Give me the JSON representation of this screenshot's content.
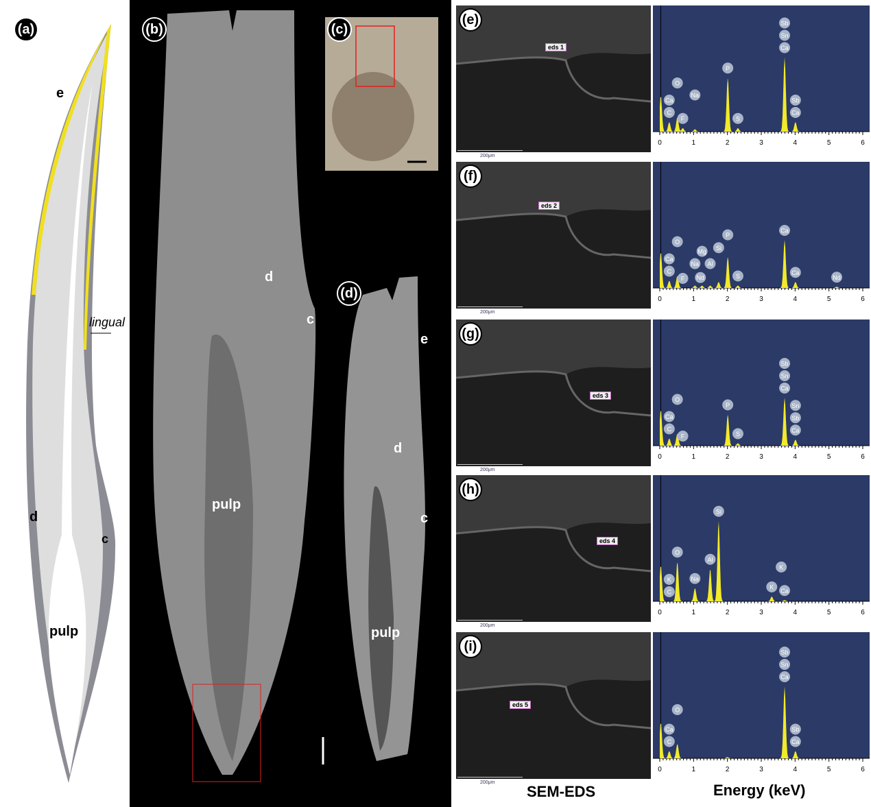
{
  "panel_a": {
    "label": "(a)",
    "enamel": "e",
    "dentine": "d",
    "cementum": "c",
    "pulp": "pulp",
    "lingual": "lingual"
  },
  "panel_b": {
    "label": "(b)",
    "dentine": "d",
    "cementum": "c",
    "pulp": "pulp"
  },
  "panel_c": {
    "label": "(c)"
  },
  "panel_d": {
    "label": "(d)",
    "enamel": "e",
    "dentine": "d",
    "cementum": "c",
    "pulp": "pulp"
  },
  "colors": {
    "enamel": "#f0e020",
    "spectrum_bg": "#2b3a67",
    "peak": "#f2ea2a",
    "highlight_box": "#e02020"
  },
  "sem_scale": "200μm",
  "captions": {
    "sem": "SEM-EDS",
    "energy": "Energy (keV)"
  },
  "chart_data": [
    {
      "type": "area",
      "panel": "(e)",
      "spot": "eds 1",
      "xlabel": "Energy (keV)",
      "xlim": [
        0,
        6
      ],
      "xticks": [
        "0",
        "1",
        "2",
        "3",
        "4",
        "5",
        "6"
      ],
      "peaks": [
        [
          0.03,
          0.3
        ],
        [
          0.28,
          0.08
        ],
        [
          0.52,
          0.12
        ],
        [
          0.68,
          0.03
        ],
        [
          1.04,
          0.02
        ],
        [
          2.01,
          0.45
        ],
        [
          2.31,
          0.03
        ],
        [
          3.69,
          0.62
        ],
        [
          4.01,
          0.08
        ]
      ],
      "labels": [
        [
          "C",
          0.28
        ],
        [
          "Ca",
          0.28
        ],
        [
          "O",
          0.52
        ],
        [
          "F",
          0.68
        ],
        [
          "Na",
          1.04
        ],
        [
          "P",
          2.01
        ],
        [
          "S",
          2.31
        ],
        [
          "Ca",
          3.69
        ],
        [
          "Sn",
          3.69
        ],
        [
          "Sb",
          3.69
        ],
        [
          "Ca",
          4.01
        ],
        [
          "Sb",
          4.01
        ]
      ]
    },
    {
      "type": "area",
      "panel": "(f)",
      "spot": "eds 2",
      "xlabel": "Energy (keV)",
      "xlim": [
        0,
        6
      ],
      "xticks": [
        "0",
        "1",
        "2",
        "3",
        "4",
        "5",
        "6"
      ],
      "peaks": [
        [
          0.03,
          0.3
        ],
        [
          0.28,
          0.06
        ],
        [
          0.52,
          0.1
        ],
        [
          1.04,
          0.02
        ],
        [
          1.25,
          0.02
        ],
        [
          1.49,
          0.02
        ],
        [
          1.74,
          0.05
        ],
        [
          2.01,
          0.26
        ],
        [
          2.31,
          0.02
        ],
        [
          3.69,
          0.4
        ],
        [
          4.01,
          0.05
        ],
        [
          5.23,
          0.01
        ]
      ],
      "labels": [
        [
          "C",
          0.28
        ],
        [
          "Ca",
          0.28
        ],
        [
          "O",
          0.52
        ],
        [
          "F",
          0.68
        ],
        [
          "Na",
          1.04
        ],
        [
          "Nd",
          1.2
        ],
        [
          "Mg",
          1.25
        ],
        [
          "Al",
          1.49
        ],
        [
          "Si",
          1.74
        ],
        [
          "P",
          2.01
        ],
        [
          "S",
          2.31
        ],
        [
          "Ca",
          3.69
        ],
        [
          "Ca",
          4.01
        ],
        [
          "Nd",
          5.23
        ]
      ]
    },
    {
      "type": "area",
      "panel": "(g)",
      "spot": "eds 3",
      "xlabel": "Energy (keV)",
      "xlim": [
        0,
        6
      ],
      "xticks": [
        "0",
        "1",
        "2",
        "3",
        "4",
        "5",
        "6"
      ],
      "peaks": [
        [
          0.03,
          0.3
        ],
        [
          0.28,
          0.06
        ],
        [
          0.52,
          0.1
        ],
        [
          2.01,
          0.26
        ],
        [
          2.31,
          0.02
        ],
        [
          3.69,
          0.4
        ],
        [
          4.01,
          0.05
        ]
      ],
      "labels": [
        [
          "C",
          0.28
        ],
        [
          "Ca",
          0.28
        ],
        [
          "O",
          0.52
        ],
        [
          "F",
          0.68
        ],
        [
          "P",
          2.01
        ],
        [
          "S",
          2.31
        ],
        [
          "Ca",
          3.69
        ],
        [
          "Sn",
          3.69
        ],
        [
          "Sb",
          3.69
        ],
        [
          "Ca",
          4.01
        ],
        [
          "Sb",
          4.01
        ],
        [
          "Sn",
          4.01
        ]
      ]
    },
    {
      "type": "area",
      "panel": "(h)",
      "spot": "eds 4",
      "xlabel": "Energy (keV)",
      "xlim": [
        0,
        6
      ],
      "xticks": [
        "0",
        "1",
        "2",
        "3",
        "4",
        "5",
        "6"
      ],
      "peaks": [
        [
          0.03,
          0.3
        ],
        [
          0.52,
          0.33
        ],
        [
          1.04,
          0.11
        ],
        [
          1.49,
          0.27
        ],
        [
          1.74,
          0.67
        ],
        [
          3.31,
          0.04
        ],
        [
          3.69,
          0.01
        ]
      ],
      "labels": [
        [
          "C",
          0.28
        ],
        [
          "K",
          0.28
        ],
        [
          "O",
          0.52
        ],
        [
          "Na",
          1.04
        ],
        [
          "Al",
          1.49
        ],
        [
          "Si",
          1.74
        ],
        [
          "K",
          3.31
        ],
        [
          "Ca",
          3.69
        ],
        [
          "K",
          3.59
        ]
      ]
    },
    {
      "type": "area",
      "panel": "(i)",
      "spot": "eds 5",
      "xlabel": "Energy (keV)",
      "xlim": [
        0,
        6
      ],
      "xticks": [
        "0",
        "1",
        "2",
        "3",
        "4",
        "5",
        "6"
      ],
      "peaks": [
        [
          0.03,
          0.3
        ],
        [
          0.28,
          0.06
        ],
        [
          0.52,
          0.12
        ],
        [
          2.0,
          0.01
        ],
        [
          3.69,
          0.6
        ],
        [
          4.01,
          0.06
        ]
      ],
      "labels": [
        [
          "C",
          0.28
        ],
        [
          "Ca",
          0.28
        ],
        [
          "O",
          0.52
        ],
        [
          "Ca",
          3.69
        ],
        [
          "Sn",
          3.69
        ],
        [
          "Sb",
          3.69
        ],
        [
          "Ca",
          4.01
        ],
        [
          "Sb",
          4.01
        ]
      ]
    }
  ]
}
